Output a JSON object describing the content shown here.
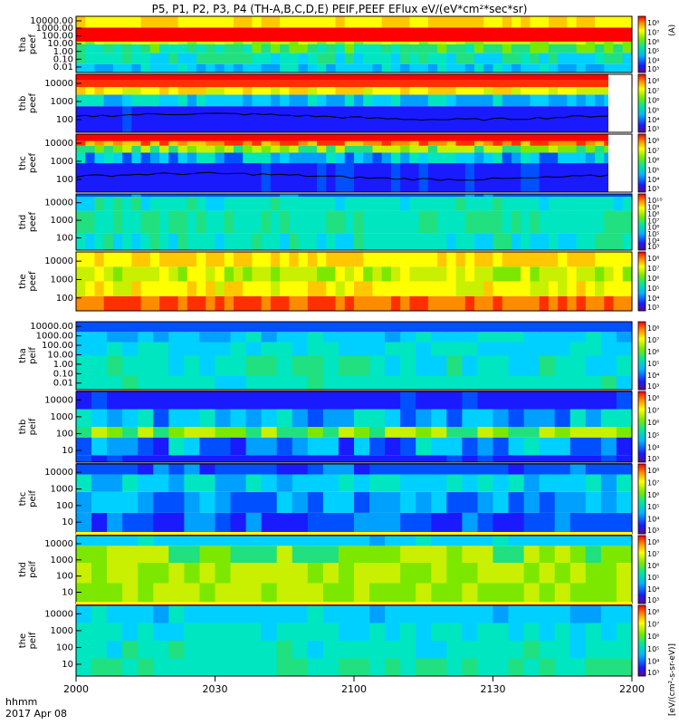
{
  "title": "P5, P1, P2, P3, P4 (TH-A,B,C,D,E) PEIF,PEEF EFlux eV/(eV*cm²*sec*sr)",
  "x_axis": {
    "label_line1": "hhmm",
    "label_line2": "2017 Apr 08",
    "ticks": [
      "2000",
      "2030",
      "2100",
      "2130",
      "2200"
    ],
    "tick_values_min": [
      0,
      30,
      60,
      90,
      120
    ],
    "range_min": [
      0,
      120
    ]
  },
  "colorbar": {
    "label": "[eV/(cm²-s-sr-eV)]",
    "label_top": "(A)"
  },
  "chart_data": [
    {
      "type": "heatmap",
      "probe": "tha",
      "ylabel": [
        "tha",
        "peef"
      ],
      "y_ticks": [
        "10000.00",
        "1000.00",
        "100.00",
        "10.00",
        "1.00",
        "0.10",
        "0.01"
      ],
      "y_log": true,
      "y_range": [
        0.01,
        30000
      ],
      "cbar_ticks": [
        "10⁸",
        "10⁷",
        "10⁶",
        "10⁵",
        "10⁴",
        "10³"
      ]
    },
    {
      "type": "heatmap",
      "probe": "thb",
      "ylabel": [
        "thb",
        "peef"
      ],
      "y_ticks": [
        "10000",
        "1000",
        "100"
      ],
      "y_log": true,
      "y_range": [
        10,
        30000
      ],
      "cbar_ticks": [
        "10⁸",
        "10⁷",
        "10⁶",
        "10⁵",
        "10⁴",
        "10³"
      ]
    },
    {
      "type": "heatmap",
      "probe": "thc",
      "ylabel": [
        "thc",
        "peef"
      ],
      "y_ticks": [
        "10000",
        "1000",
        "100"
      ],
      "y_log": true,
      "y_range": [
        10,
        30000
      ],
      "cbar_ticks": [
        "10⁸",
        "10⁷",
        "10⁶",
        "10⁵",
        "10⁴",
        "10³"
      ]
    },
    {
      "type": "heatmap",
      "probe": "thd",
      "ylabel": [
        "thd",
        "peef"
      ],
      "y_ticks": [
        "10000",
        "1000",
        "100"
      ],
      "y_log": true,
      "y_range": [
        10,
        30000
      ],
      "cbar_ticks": [
        "10¹⁰",
        "10⁹",
        "10⁸",
        "10⁷",
        "10⁶",
        "10⁵",
        "10⁴",
        "10³"
      ]
    },
    {
      "type": "heatmap",
      "probe": "the",
      "ylabel": [
        "the",
        "peef"
      ],
      "y_ticks": [
        "10000",
        "1000",
        "100"
      ],
      "y_log": true,
      "y_range": [
        10,
        30000
      ],
      "cbar_ticks": [
        "10⁸",
        "10⁷",
        "10⁶",
        "10⁵",
        "10⁴",
        "10³"
      ]
    },
    {
      "type": "heatmap",
      "probe": "tha",
      "ylabel": [
        "tha",
        "peif"
      ],
      "y_ticks": [
        "10000.00",
        "1000.00",
        "100.00",
        "10.00",
        "1.00",
        "0.10",
        "0.01"
      ],
      "y_log": true,
      "y_range": [
        0.01,
        30000
      ],
      "cbar_ticks": [
        "10⁸",
        "10⁷",
        "10⁶",
        "10⁵",
        "10⁴",
        "10³"
      ]
    },
    {
      "type": "heatmap",
      "probe": "thb",
      "ylabel": [
        "thb",
        "peif"
      ],
      "y_ticks": [
        "10000",
        "1000",
        "100",
        "10"
      ],
      "y_log": true,
      "y_range": [
        5,
        30000
      ],
      "cbar_ticks": [
        "10⁸",
        "10⁷",
        "10⁶",
        "10⁵",
        "10⁴",
        "10³"
      ]
    },
    {
      "type": "heatmap",
      "probe": "thc",
      "ylabel": [
        "thc",
        "peif"
      ],
      "y_ticks": [
        "10000",
        "1000",
        "100",
        "10"
      ],
      "y_log": true,
      "y_range": [
        5,
        30000
      ],
      "cbar_ticks": [
        "10⁸",
        "10⁷",
        "10⁶",
        "10⁵",
        "10⁴",
        "10³"
      ]
    },
    {
      "type": "heatmap",
      "probe": "thd",
      "ylabel": [
        "thd",
        "peif"
      ],
      "y_ticks": [
        "10000",
        "1000",
        "100",
        "10"
      ],
      "y_log": true,
      "y_range": [
        5,
        30000
      ],
      "cbar_ticks": [
        "10⁸",
        "10⁷",
        "10⁶",
        "10⁵",
        "10⁴",
        "10³"
      ]
    },
    {
      "type": "heatmap",
      "probe": "the",
      "ylabel": [
        "the",
        "peif"
      ],
      "y_ticks": [
        "10000",
        "1000",
        "100",
        "10"
      ],
      "y_log": true,
      "y_range": [
        5,
        30000
      ],
      "cbar_ticks": [
        "10⁸",
        "10⁷",
        "10⁶",
        "10⁵",
        "10⁴",
        "10³"
      ]
    }
  ]
}
